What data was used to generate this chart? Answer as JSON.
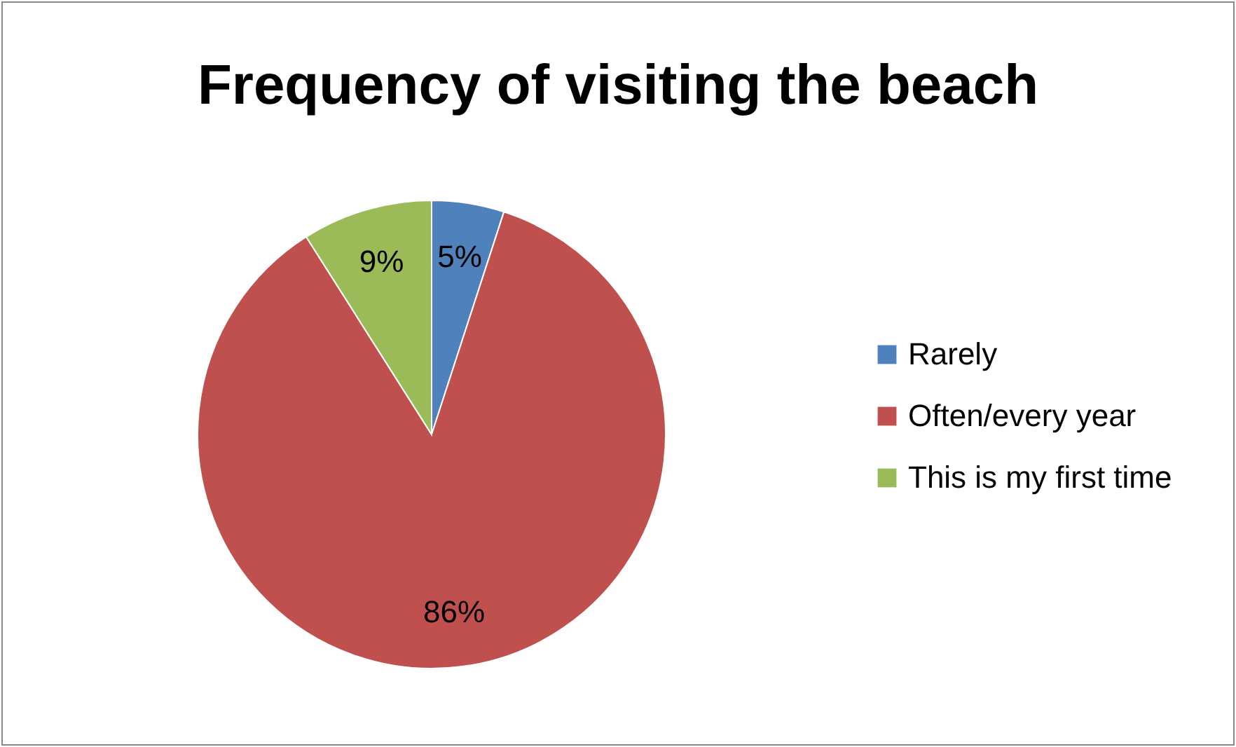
{
  "chart_data": {
    "type": "pie",
    "title": "Frequency of visiting the beach",
    "categories": [
      "Rarely",
      "Often/every year",
      "This is my first time"
    ],
    "values": [
      5,
      86,
      9
    ],
    "colors": [
      "#4f81bd",
      "#c0504d",
      "#9bbb59"
    ],
    "value_labels": [
      "5%",
      "86%",
      "9%"
    ],
    "legend": "right"
  }
}
